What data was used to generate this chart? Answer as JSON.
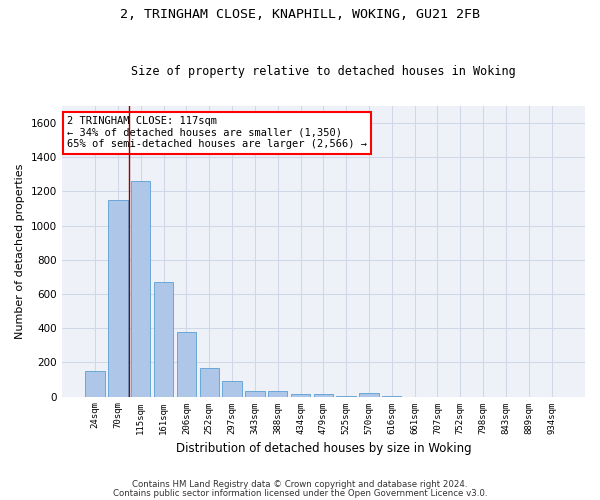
{
  "title1": "2, TRINGHAM CLOSE, KNAPHILL, WOKING, GU21 2FB",
  "title2": "Size of property relative to detached houses in Woking",
  "xlabel": "Distribution of detached houses by size in Woking",
  "ylabel": "Number of detached properties",
  "categories": [
    "24sqm",
    "70sqm",
    "115sqm",
    "161sqm",
    "206sqm",
    "252sqm",
    "297sqm",
    "343sqm",
    "388sqm",
    "434sqm",
    "479sqm",
    "525sqm",
    "570sqm",
    "616sqm",
    "661sqm",
    "707sqm",
    "752sqm",
    "798sqm",
    "843sqm",
    "889sqm",
    "934sqm"
  ],
  "values": [
    150,
    1150,
    1260,
    670,
    375,
    165,
    90,
    35,
    30,
    15,
    15,
    2,
    20,
    2,
    0,
    0,
    0,
    0,
    0,
    0,
    0
  ],
  "bar_color": "#aec6e8",
  "bar_edge_color": "#5a9fd4",
  "ylim": [
    0,
    1700
  ],
  "yticks": [
    0,
    200,
    400,
    600,
    800,
    1000,
    1200,
    1400,
    1600
  ],
  "vline_x": 1.5,
  "annotation_text": "2 TRINGHAM CLOSE: 117sqm\n← 34% of detached houses are smaller (1,350)\n65% of semi-detached houses are larger (2,566) →",
  "footer1": "Contains HM Land Registry data © Crown copyright and database right 2024.",
  "footer2": "Contains public sector information licensed under the Open Government Licence v3.0.",
  "background_color": "#eef2f8",
  "grid_color": "#d0d8e8"
}
